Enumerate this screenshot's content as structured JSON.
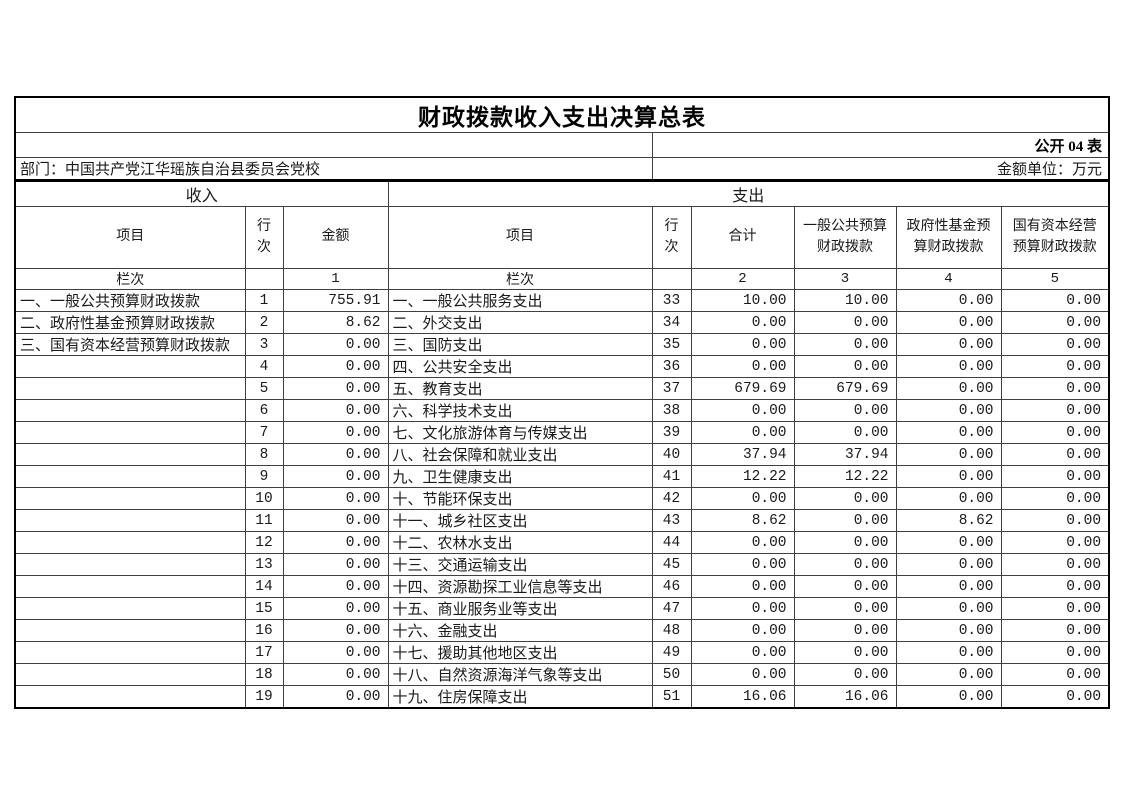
{
  "meta": {
    "title": "财政拨款收入支出决算总表",
    "form_code": "公开 04 表",
    "department": "部门：中国共产党江华瑶族自治县委员会党校",
    "unit": "金额单位：万元"
  },
  "sections": {
    "income": "收入",
    "expense": "支出"
  },
  "columns": {
    "item": "项目",
    "line_no": "行次",
    "amount": "金额",
    "total": "合计",
    "general_budget": "一般公共预算财政拨款",
    "govt_fund": "政府性基金预算财政拨款",
    "state_capital": "国有资本经营预算财政拨款",
    "lanci": "栏次",
    "col_numbers": [
      "1",
      "2",
      "3",
      "4",
      "5"
    ]
  },
  "income_rows": [
    {
      "item": "一、一般公共预算财政拨款",
      "line": "1",
      "amount": "755.91"
    },
    {
      "item": "二、政府性基金预算财政拨款",
      "line": "2",
      "amount": "8.62"
    },
    {
      "item": "三、国有资本经营预算财政拨款",
      "line": "3",
      "amount": "0.00"
    },
    {
      "item": "",
      "line": "4",
      "amount": "0.00"
    },
    {
      "item": "",
      "line": "5",
      "amount": "0.00"
    },
    {
      "item": "",
      "line": "6",
      "amount": "0.00"
    },
    {
      "item": "",
      "line": "7",
      "amount": "0.00"
    },
    {
      "item": "",
      "line": "8",
      "amount": "0.00"
    },
    {
      "item": "",
      "line": "9",
      "amount": "0.00"
    },
    {
      "item": "",
      "line": "10",
      "amount": "0.00"
    },
    {
      "item": "",
      "line": "11",
      "amount": "0.00"
    },
    {
      "item": "",
      "line": "12",
      "amount": "0.00"
    },
    {
      "item": "",
      "line": "13",
      "amount": "0.00"
    },
    {
      "item": "",
      "line": "14",
      "amount": "0.00"
    },
    {
      "item": "",
      "line": "15",
      "amount": "0.00"
    },
    {
      "item": "",
      "line": "16",
      "amount": "0.00"
    },
    {
      "item": "",
      "line": "17",
      "amount": "0.00"
    },
    {
      "item": "",
      "line": "18",
      "amount": "0.00"
    },
    {
      "item": "",
      "line": "19",
      "amount": "0.00"
    }
  ],
  "expense_rows": [
    {
      "item": "一、一般公共服务支出",
      "line": "33",
      "total": "10.00",
      "general": "10.00",
      "fund": "0.00",
      "capital": "0.00"
    },
    {
      "item": "二、外交支出",
      "line": "34",
      "total": "0.00",
      "general": "0.00",
      "fund": "0.00",
      "capital": "0.00"
    },
    {
      "item": "三、国防支出",
      "line": "35",
      "total": "0.00",
      "general": "0.00",
      "fund": "0.00",
      "capital": "0.00"
    },
    {
      "item": "四、公共安全支出",
      "line": "36",
      "total": "0.00",
      "general": "0.00",
      "fund": "0.00",
      "capital": "0.00"
    },
    {
      "item": "五、教育支出",
      "line": "37",
      "total": "679.69",
      "general": "679.69",
      "fund": "0.00",
      "capital": "0.00"
    },
    {
      "item": "六、科学技术支出",
      "line": "38",
      "total": "0.00",
      "general": "0.00",
      "fund": "0.00",
      "capital": "0.00"
    },
    {
      "item": "七、文化旅游体育与传媒支出",
      "line": "39",
      "total": "0.00",
      "general": "0.00",
      "fund": "0.00",
      "capital": "0.00"
    },
    {
      "item": "八、社会保障和就业支出",
      "line": "40",
      "total": "37.94",
      "general": "37.94",
      "fund": "0.00",
      "capital": "0.00"
    },
    {
      "item": "九、卫生健康支出",
      "line": "41",
      "total": "12.22",
      "general": "12.22",
      "fund": "0.00",
      "capital": "0.00"
    },
    {
      "item": "十、节能环保支出",
      "line": "42",
      "total": "0.00",
      "general": "0.00",
      "fund": "0.00",
      "capital": "0.00"
    },
    {
      "item": "十一、城乡社区支出",
      "line": "43",
      "total": "8.62",
      "general": "0.00",
      "fund": "8.62",
      "capital": "0.00"
    },
    {
      "item": "十二、农林水支出",
      "line": "44",
      "total": "0.00",
      "general": "0.00",
      "fund": "0.00",
      "capital": "0.00"
    },
    {
      "item": "十三、交通运输支出",
      "line": "45",
      "total": "0.00",
      "general": "0.00",
      "fund": "0.00",
      "capital": "0.00"
    },
    {
      "item": "十四、资源勘探工业信息等支出",
      "line": "46",
      "total": "0.00",
      "general": "0.00",
      "fund": "0.00",
      "capital": "0.00"
    },
    {
      "item": "十五、商业服务业等支出",
      "line": "47",
      "total": "0.00",
      "general": "0.00",
      "fund": "0.00",
      "capital": "0.00"
    },
    {
      "item": "十六、金融支出",
      "line": "48",
      "total": "0.00",
      "general": "0.00",
      "fund": "0.00",
      "capital": "0.00"
    },
    {
      "item": "十七、援助其他地区支出",
      "line": "49",
      "total": "0.00",
      "general": "0.00",
      "fund": "0.00",
      "capital": "0.00"
    },
    {
      "item": "十八、自然资源海洋气象等支出",
      "line": "50",
      "total": "0.00",
      "general": "0.00",
      "fund": "0.00",
      "capital": "0.00"
    },
    {
      "item": "十九、住房保障支出",
      "line": "51",
      "total": "16.06",
      "general": "16.06",
      "fund": "0.00",
      "capital": "0.00"
    }
  ]
}
